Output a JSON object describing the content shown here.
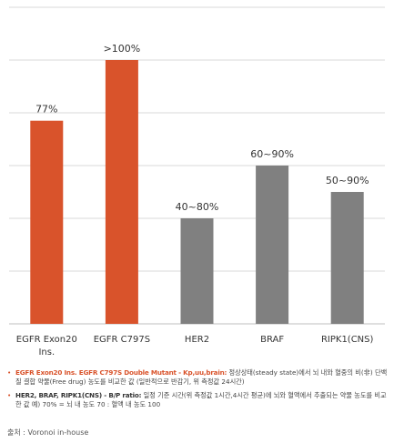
{
  "chart_data": {
    "type": "bar",
    "categories": [
      "EGFR Exon20\nIns.",
      "EGFR C797S",
      "HER2",
      "BRAF",
      "RIPK1(CNS)"
    ],
    "values": [
      77,
      100,
      40,
      60,
      50
    ],
    "data_labels": [
      "77%",
      ">100%",
      "40~80%",
      "60~90%",
      "50~90%"
    ],
    "colors": [
      "#d9532b",
      "#d9532b",
      "#808080",
      "#808080",
      "#808080"
    ],
    "ylim": [
      0,
      120
    ],
    "grid": true,
    "title": "",
    "xlabel": "",
    "ylabel": ""
  },
  "notes": [
    {
      "key": "EGFR Exon20 Ins. EGFR C797S Double Mutant - Kp,uu,brain:",
      "text": " 정상상태(steady state)에서 뇌 내와 혈중의 비(非) 단백질 결합 약물(Free drug) 농도를 비교한 값 (일반적으로 반감기, 위 측정값 24시간)"
    },
    {
      "key": "HER2, BRAF, RIPK1(CNS) - B/P ratio:",
      "text": " 일정 기준 시간(위 측정값 1시간,4시간 평균)에 뇌와 혈액에서 추출되는 약물 농도를 비교한 값 예) 70% = 뇌 내 농도 70 : 혈액 내 농도 100"
    }
  ],
  "source": "출처 : Voronoi in-house"
}
